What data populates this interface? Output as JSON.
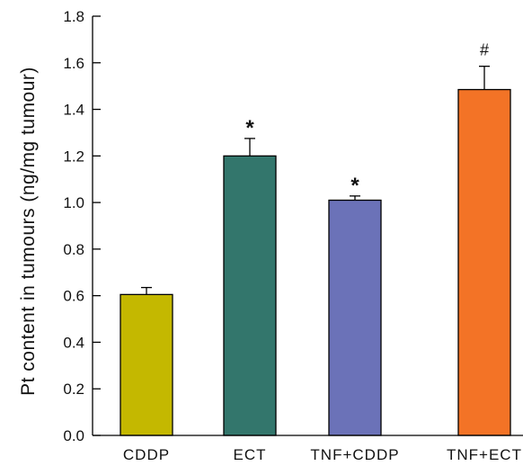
{
  "chart_data": {
    "type": "bar",
    "xlabel": "",
    "ylabel": "Pt content in tumours (ng/mg tumour)",
    "ylim": [
      0.0,
      1.8
    ],
    "yticks": [
      "0.0",
      "0.2",
      "0.4",
      "0.6",
      "0.8",
      "1.0",
      "1.2",
      "1.4",
      "1.6",
      "1.8"
    ],
    "categories": [
      "CDDP",
      "ECT",
      "TNF+CDDP",
      "TNF+ECT"
    ],
    "values": [
      0.605,
      1.2,
      1.01,
      1.485
    ],
    "errors": [
      0.03,
      0.075,
      0.018,
      0.1
    ],
    "annotations": [
      "",
      "*",
      "*",
      "#"
    ],
    "colors": [
      "#c4b800",
      "#33766c",
      "#6b72b8",
      "#f37326"
    ],
    "grid": false,
    "legend": "none"
  }
}
